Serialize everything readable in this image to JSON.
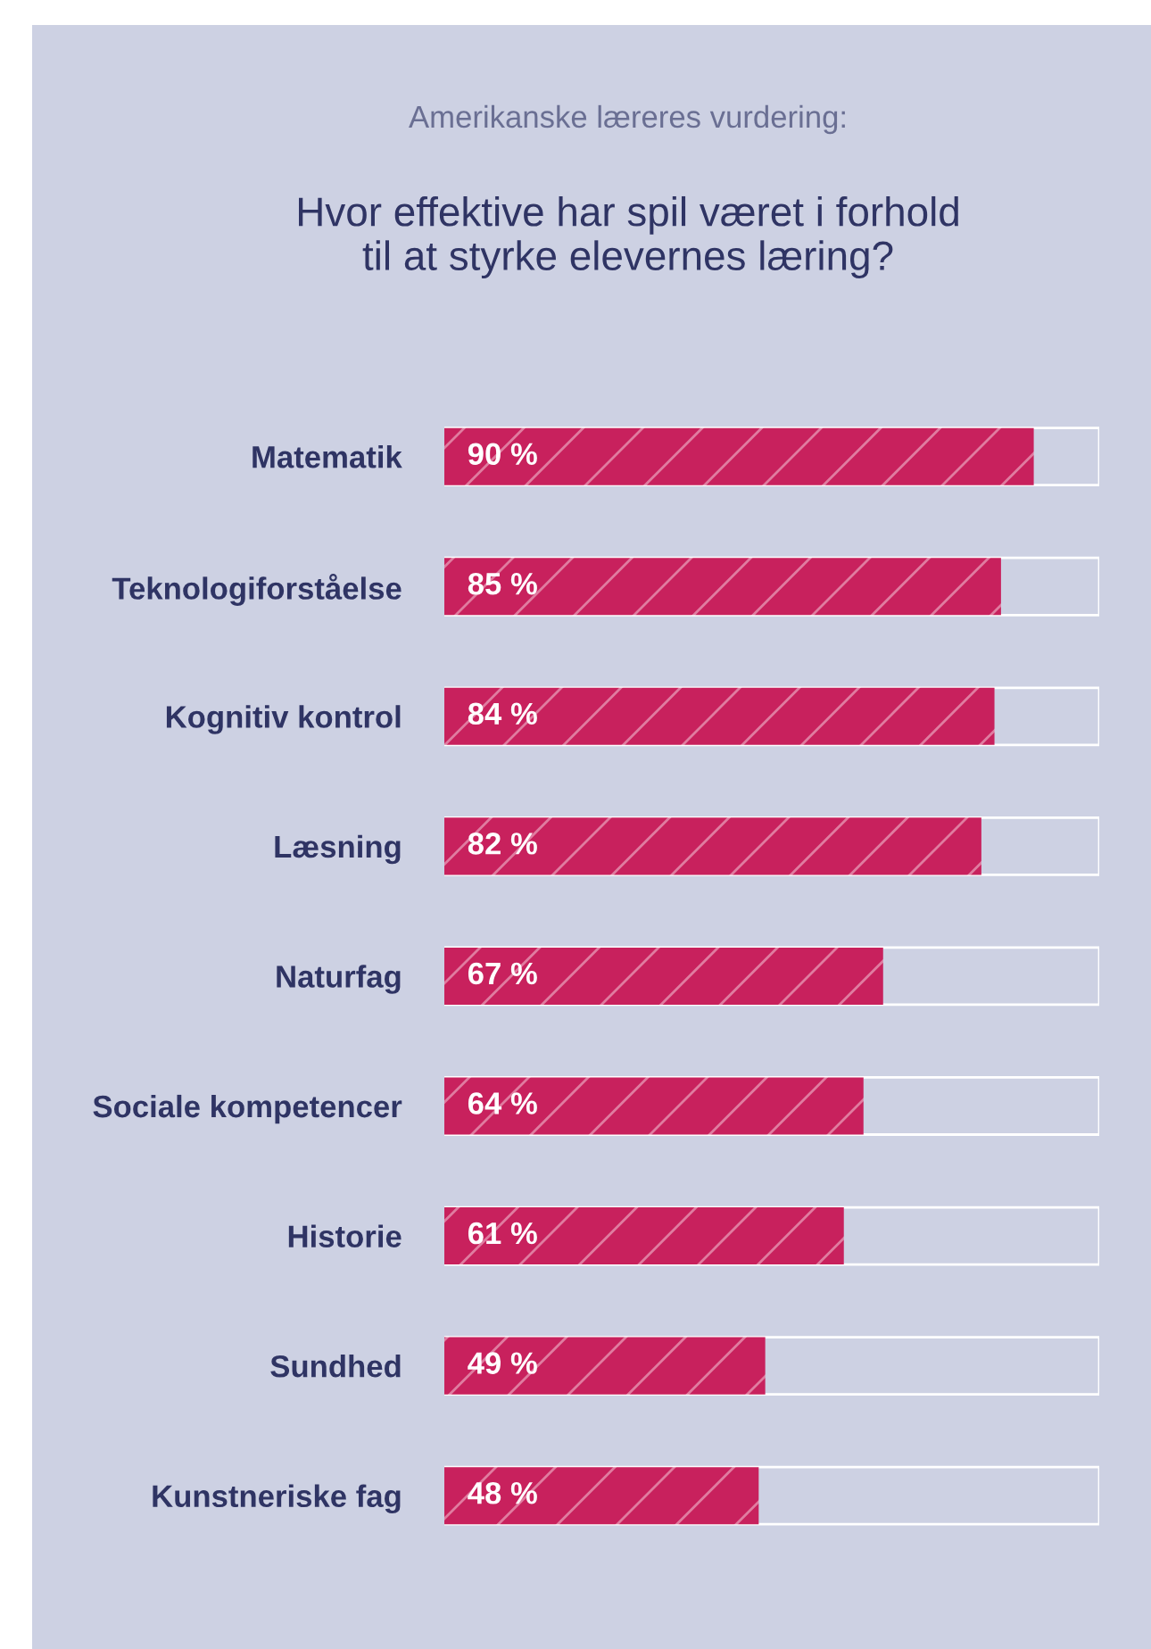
{
  "chart_data": {
    "type": "bar",
    "orientation": "horizontal",
    "subtitle": "Amerikanske læreres vurdering:",
    "title": "Hvor effektive har spil været i forhold\ntil at styrke elevernes læring?",
    "categories": [
      "Matematik",
      "Teknologiforståelse",
      "Kognitiv kontrol",
      "Læsning",
      "Naturfag",
      "Sociale kompetencer",
      "Historie",
      "Sundhed",
      "Kunstneriske fag"
    ],
    "values": [
      90,
      85,
      84,
      82,
      67,
      64,
      61,
      49,
      48
    ],
    "value_labels": [
      "90 %",
      "85 %",
      "84 %",
      "82 %",
      "67 %",
      "64 %",
      "61 %",
      "49 %",
      "48 %"
    ],
    "color": "#c8215d",
    "xlim": [
      0,
      100
    ],
    "tick_labels": "y",
    "grid": false
  }
}
